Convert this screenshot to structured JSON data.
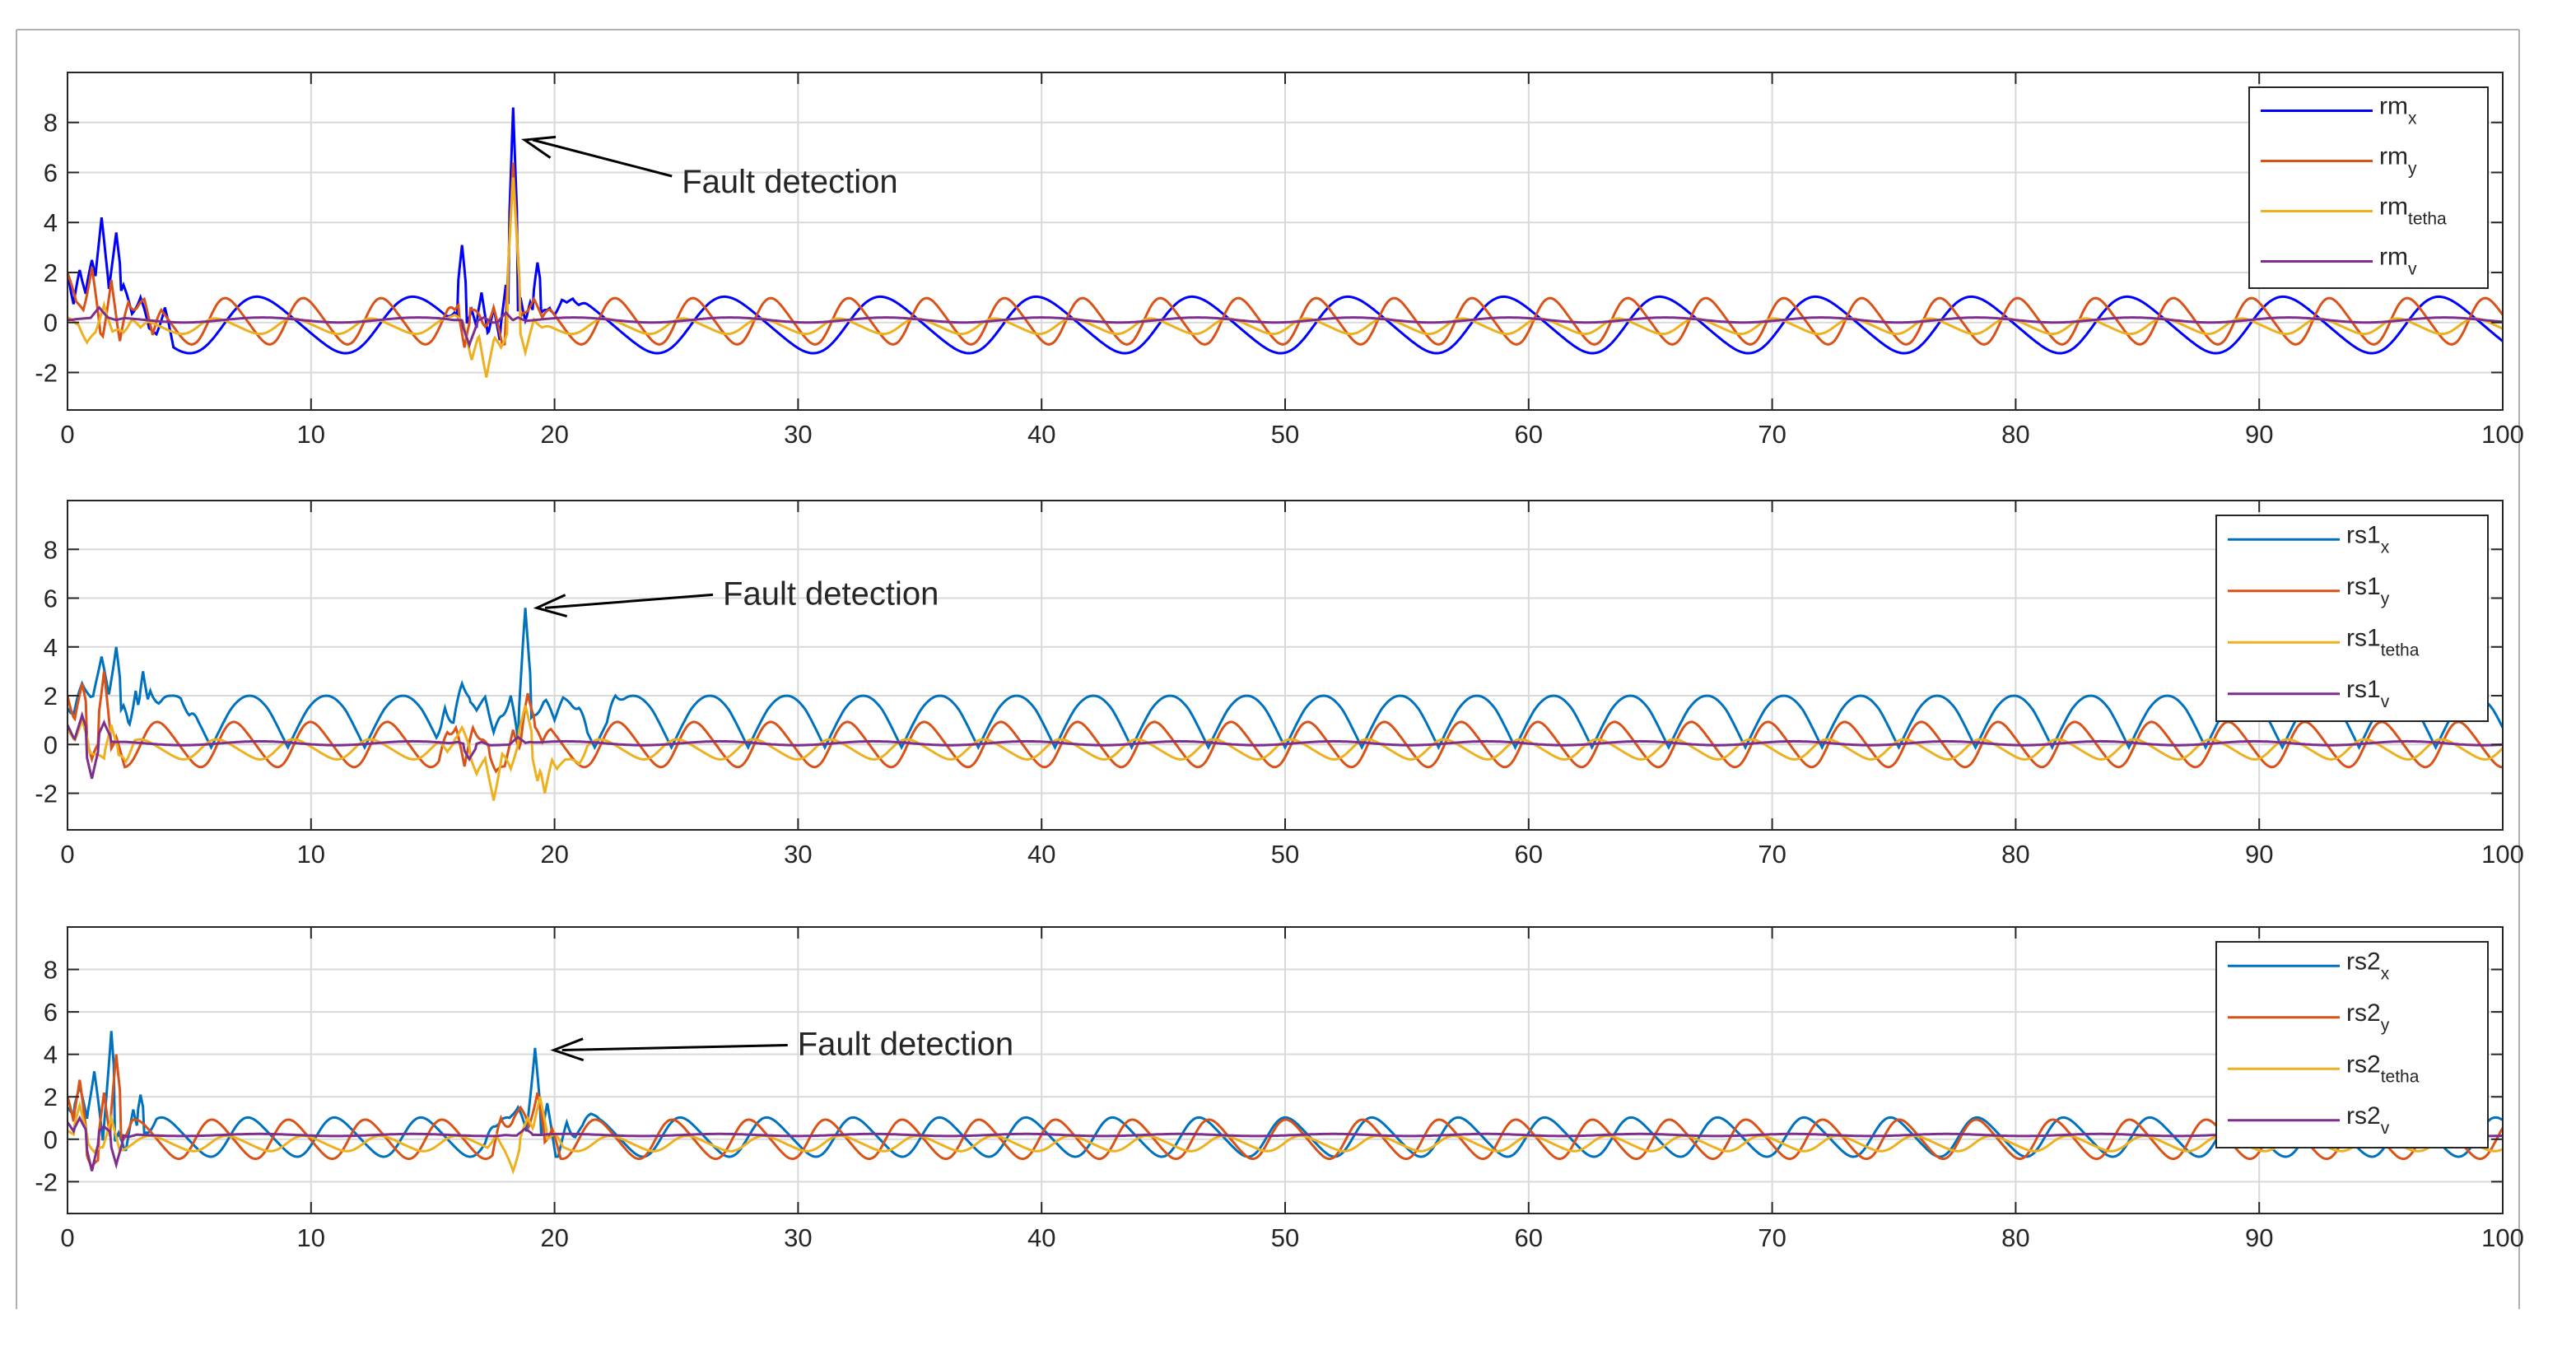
{
  "figure": {
    "background": "#ffffff",
    "axes_color": "#262626",
    "grid_color": "#d9d9d9"
  },
  "chart_data": [
    {
      "type": "line",
      "xlim": [
        0,
        100
      ],
      "ylim": [
        -3.5,
        10
      ],
      "xticks": [
        0,
        10,
        20,
        30,
        40,
        50,
        60,
        70,
        80,
        90,
        100
      ],
      "yticks": [
        -2,
        0,
        2,
        4,
        6,
        8
      ],
      "grid": true,
      "legend_position": "top-right",
      "annotation": {
        "text": "Fault detection",
        "target_x": 18.5,
        "target_y": 7.3
      },
      "series": [
        {
          "name": "rm",
          "subscript": "x",
          "color": "#0000ff",
          "shape": "sine",
          "amplitude": 1.1,
          "period": 6.4,
          "phase": 0,
          "offset": -0.1,
          "events": [
            [
              0,
              2.0
            ],
            [
              0.5,
              2.1
            ],
            [
              1.0,
              2.5
            ],
            [
              1.4,
              4.2
            ],
            [
              2.0,
              3.6
            ],
            [
              2.3,
              1.5
            ],
            [
              3.0,
              1.0
            ],
            [
              4.0,
              0.6
            ],
            [
              15.9,
              0.4
            ],
            [
              16.2,
              3.1
            ],
            [
              16.6,
              0.5
            ],
            [
              17.0,
              1.2
            ],
            [
              17.5,
              0.6
            ],
            [
              18.0,
              1.5
            ],
            [
              18.3,
              8.6
            ],
            [
              18.6,
              1.0
            ],
            [
              19.0,
              0.8
            ],
            [
              19.3,
              2.4
            ],
            [
              19.6,
              0.5
            ],
            [
              20.0,
              0.3
            ],
            [
              20.5,
              0.8
            ],
            [
              21.0,
              0.7
            ]
          ]
        },
        {
          "name": "rm",
          "subscript": "y",
          "color": "#d95319",
          "shape": "sine",
          "amplitude": 0.9,
          "period": 3.2,
          "phase": 1.2,
          "offset": 0.05,
          "events": [
            [
              0,
              2.0
            ],
            [
              1.0,
              2.2
            ],
            [
              1.8,
              1.7
            ],
            [
              2.5,
              0.8
            ],
            [
              3.5,
              -0.5
            ],
            [
              15.9,
              0.5
            ],
            [
              16.3,
              -1.0
            ],
            [
              16.7,
              0.5
            ],
            [
              17.5,
              0.6
            ],
            [
              18.3,
              6.4
            ],
            [
              18.8,
              0.4
            ],
            [
              19.5,
              0.2
            ]
          ]
        },
        {
          "name": "rm",
          "subscript": "tetha",
          "color": "#edb120",
          "shape": "sine",
          "amplitude": 0.3,
          "period": 3.2,
          "phase": 2.0,
          "offset": -0.15,
          "events": [
            [
              0,
              0.2
            ],
            [
              0.8,
              -0.8
            ],
            [
              1.5,
              0.7
            ],
            [
              2.3,
              -0.4
            ],
            [
              3.0,
              -0.2
            ],
            [
              15.9,
              0.3
            ],
            [
              16.6,
              -1.5
            ],
            [
              17.2,
              -2.2
            ],
            [
              17.8,
              -1.0
            ],
            [
              18.3,
              5.8
            ],
            [
              18.8,
              -1.2
            ],
            [
              19.5,
              -0.2
            ]
          ]
        },
        {
          "name": "rm",
          "subscript": "v",
          "color": "#7e2f8e",
          "shape": "flat",
          "amplitude": 0.1,
          "period": 6.4,
          "phase": 0,
          "offset": 0.1,
          "events": [
            [
              0,
              0.1
            ],
            [
              1.3,
              0.6
            ],
            [
              2.0,
              0.1
            ],
            [
              15.9,
              0.1
            ],
            [
              16.5,
              -0.9
            ],
            [
              17.1,
              0.2
            ],
            [
              18.0,
              0.4
            ],
            [
              18.5,
              0.2
            ]
          ]
        }
      ]
    },
    {
      "type": "line",
      "xlim": [
        0,
        100
      ],
      "ylim": [
        -3.5,
        10
      ],
      "xticks": [
        0,
        10,
        20,
        30,
        40,
        50,
        60,
        70,
        80,
        90,
        100
      ],
      "yticks": [
        -2,
        0,
        2,
        4,
        6,
        8
      ],
      "grid": true,
      "legend_position": "top-right",
      "annotation": {
        "text": "Fault detection",
        "target_x": 19.0,
        "target_y": 5.6
      },
      "series": [
        {
          "name": "rs1",
          "subscript": "x",
          "color": "#0072bd",
          "shape": "hump",
          "amplitude": 2.0,
          "period": 6.3,
          "phase": 0.4,
          "offset": 0,
          "events": [
            [
              0,
              1.5
            ],
            [
              0.6,
              2.5
            ],
            [
              1.4,
              3.6
            ],
            [
              2.0,
              4.0
            ],
            [
              2.3,
              1.6
            ],
            [
              2.8,
              2.2
            ],
            [
              3.1,
              3.0
            ],
            [
              3.4,
              2.2
            ],
            [
              4.2,
              2.0
            ],
            [
              5.0,
              1.2
            ],
            [
              15.5,
              1.5
            ],
            [
              16.2,
              2.5
            ],
            [
              16.8,
              1.4
            ],
            [
              17.5,
              0.5
            ],
            [
              18.2,
              2.0
            ],
            [
              18.8,
              5.6
            ],
            [
              19.2,
              1.2
            ],
            [
              20.0,
              1.0
            ],
            [
              21.0,
              1.5
            ],
            [
              22.5,
              2.0
            ]
          ]
        },
        {
          "name": "rs1",
          "subscript": "y",
          "color": "#d95319",
          "shape": "sine",
          "amplitude": 0.9,
          "period": 3.15,
          "phase": 0.3,
          "offset": 0,
          "events": [
            [
              0,
              2.0
            ],
            [
              0.6,
              2.5
            ],
            [
              1.0,
              -0.6
            ],
            [
              1.5,
              3.0
            ],
            [
              2.0,
              0.3
            ],
            [
              15.6,
              0.5
            ],
            [
              16.3,
              -0.9
            ],
            [
              17.0,
              0.2
            ],
            [
              17.6,
              -1.1
            ],
            [
              18.3,
              0.6
            ],
            [
              18.9,
              2.1
            ],
            [
              19.5,
              0.1
            ]
          ]
        },
        {
          "name": "rs1",
          "subscript": "tetha",
          "color": "#edb120",
          "shape": "sine",
          "amplitude": 0.4,
          "period": 3.15,
          "phase": 1.7,
          "offset": -0.2,
          "events": [
            [
              0,
              0.6
            ],
            [
              0.6,
              1.0
            ],
            [
              1.2,
              -0.4
            ],
            [
              1.8,
              0.8
            ],
            [
              2.4,
              -0.7
            ],
            [
              15.6,
              -0.3
            ],
            [
              16.2,
              0.7
            ],
            [
              16.8,
              -1.2
            ],
            [
              17.5,
              -2.3
            ],
            [
              18.2,
              -1.0
            ],
            [
              18.8,
              1.6
            ],
            [
              19.3,
              -1.5
            ],
            [
              19.6,
              -2.0
            ],
            [
              20.1,
              -1.0
            ],
            [
              21.0,
              -0.8
            ]
          ]
        },
        {
          "name": "rs1",
          "subscript": "v",
          "color": "#7e2f8e",
          "shape": "flat",
          "amplitude": 0.08,
          "period": 6.3,
          "phase": 0,
          "offset": 0.05,
          "events": [
            [
              0,
              0.8
            ],
            [
              0.6,
              1.2
            ],
            [
              1.0,
              -1.4
            ],
            [
              1.5,
              0.9
            ],
            [
              2.0,
              0.1
            ],
            [
              16.0,
              0.1
            ],
            [
              16.5,
              -0.6
            ],
            [
              17.0,
              0.1
            ],
            [
              18.5,
              0.3
            ],
            [
              19.0,
              0.1
            ]
          ]
        }
      ]
    },
    {
      "type": "line",
      "xlim": [
        0,
        100
      ],
      "ylim": [
        -3.5,
        10
      ],
      "xticks": [
        0,
        10,
        20,
        30,
        40,
        50,
        60,
        70,
        80,
        90,
        100
      ],
      "yticks": [
        -2,
        0,
        2,
        4,
        6,
        8
      ],
      "grid": true,
      "legend_position": "top-right",
      "annotation": {
        "text": "Fault detection",
        "target_x": 19.7,
        "target_y": 4.2
      },
      "series": [
        {
          "name": "rs2",
          "subscript": "x",
          "color": "#0072bd",
          "shape": "sine",
          "amplitude": 0.9,
          "period": 3.55,
          "phase": 0.8,
          "offset": 0.1,
          "events": [
            [
              0,
              1.5
            ],
            [
              0.5,
              2.5
            ],
            [
              1.1,
              3.2
            ],
            [
              1.8,
              5.1
            ],
            [
              2.1,
              0.3
            ],
            [
              2.7,
              1.4
            ],
            [
              3.0,
              2.1
            ],
            [
              3.3,
              0.3
            ],
            [
              17.5,
              0.6
            ],
            [
              18.5,
              1.5
            ],
            [
              19.2,
              4.3
            ],
            [
              19.7,
              1.7
            ],
            [
              20.5,
              0.8
            ],
            [
              21.5,
              1.2
            ]
          ]
        },
        {
          "name": "rs2",
          "subscript": "y",
          "color": "#d95319",
          "shape": "sine",
          "amplitude": 0.9,
          "period": 3.15,
          "phase": 2.1,
          "offset": 0,
          "events": [
            [
              0,
              2.0
            ],
            [
              0.5,
              2.8
            ],
            [
              1.0,
              -1.3
            ],
            [
              1.5,
              2.2
            ],
            [
              2.0,
              4.0
            ],
            [
              2.3,
              0.0
            ],
            [
              17.8,
              1.0
            ],
            [
              18.6,
              1.5
            ],
            [
              19.3,
              2.2
            ],
            [
              19.9,
              0.5
            ]
          ]
        },
        {
          "name": "rs2",
          "subscript": "tetha",
          "color": "#edb120",
          "shape": "sine",
          "amplitude": 0.35,
          "period": 3.15,
          "phase": 0.9,
          "offset": -0.2,
          "events": [
            [
              0,
              0.4
            ],
            [
              0.5,
              1.6
            ],
            [
              1.1,
              -0.6
            ],
            [
              1.8,
              1.0
            ],
            [
              17.6,
              0.2
            ],
            [
              18.3,
              -1.5
            ],
            [
              18.9,
              1.0
            ],
            [
              19.4,
              2.0
            ],
            [
              20.0,
              0.3
            ]
          ]
        },
        {
          "name": "rs2",
          "subscript": "v",
          "color": "#7e2f8e",
          "shape": "flat",
          "amplitude": 0.05,
          "period": 6.3,
          "phase": 0,
          "offset": 0.2,
          "events": [
            [
              0,
              0.8
            ],
            [
              0.5,
              1.0
            ],
            [
              1.0,
              -1.5
            ],
            [
              1.5,
              0.6
            ],
            [
              2.0,
              -1.2
            ],
            [
              2.5,
              0.1
            ],
            [
              18.0,
              0.2
            ],
            [
              18.8,
              0.5
            ],
            [
              19.4,
              0.2
            ]
          ]
        }
      ]
    }
  ]
}
